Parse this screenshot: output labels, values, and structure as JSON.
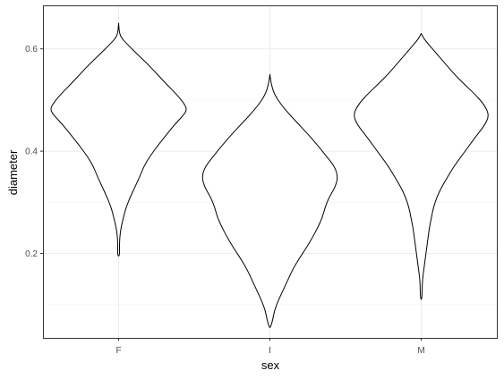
{
  "chart_data": {
    "type": "violin",
    "xlabel": "sex",
    "ylabel": "diameter",
    "categories": [
      "F",
      "I",
      "M"
    ],
    "ylim": [
      0.035,
      0.685
    ],
    "y_ticks": [
      0.2,
      0.4,
      0.6
    ],
    "y_tick_labels": [
      "0.2",
      "0.4",
      "0.6"
    ],
    "grid": true,
    "colors": {
      "outline": "#000000",
      "fill": "#ffffff",
      "grid": "#ebebeb",
      "border": "#333333"
    },
    "violins": [
      {
        "category": "F",
        "profile": [
          [
            0.195,
            0.0
          ],
          [
            0.197,
            0.013
          ],
          [
            0.21,
            0.013
          ],
          [
            0.23,
            0.015
          ],
          [
            0.25,
            0.035
          ],
          [
            0.27,
            0.07
          ],
          [
            0.29,
            0.11
          ],
          [
            0.31,
            0.17
          ],
          [
            0.33,
            0.24
          ],
          [
            0.35,
            0.31
          ],
          [
            0.37,
            0.37
          ],
          [
            0.39,
            0.46
          ],
          [
            0.41,
            0.57
          ],
          [
            0.43,
            0.69
          ],
          [
            0.45,
            0.81
          ],
          [
            0.47,
            0.95
          ],
          [
            0.48,
            1.0
          ],
          [
            0.49,
            0.98
          ],
          [
            0.51,
            0.86
          ],
          [
            0.53,
            0.71
          ],
          [
            0.55,
            0.57
          ],
          [
            0.57,
            0.43
          ],
          [
            0.59,
            0.27
          ],
          [
            0.61,
            0.12
          ],
          [
            0.62,
            0.05
          ],
          [
            0.63,
            0.012
          ],
          [
            0.65,
            0.0
          ]
        ]
      },
      {
        "category": "I",
        "profile": [
          [
            0.055,
            0.0
          ],
          [
            0.06,
            0.02
          ],
          [
            0.07,
            0.04
          ],
          [
            0.09,
            0.07
          ],
          [
            0.11,
            0.13
          ],
          [
            0.13,
            0.2
          ],
          [
            0.15,
            0.27
          ],
          [
            0.17,
            0.34
          ],
          [
            0.19,
            0.43
          ],
          [
            0.21,
            0.53
          ],
          [
            0.23,
            0.62
          ],
          [
            0.25,
            0.7
          ],
          [
            0.27,
            0.77
          ],
          [
            0.29,
            0.81
          ],
          [
            0.31,
            0.87
          ],
          [
            0.33,
            0.96
          ],
          [
            0.35,
            1.0
          ],
          [
            0.37,
            0.95
          ],
          [
            0.39,
            0.83
          ],
          [
            0.41,
            0.71
          ],
          [
            0.43,
            0.58
          ],
          [
            0.45,
            0.44
          ],
          [
            0.47,
            0.3
          ],
          [
            0.49,
            0.17
          ],
          [
            0.51,
            0.07
          ],
          [
            0.53,
            0.02
          ],
          [
            0.55,
            0.0
          ]
        ]
      },
      {
        "category": "M",
        "profile": [
          [
            0.11,
            0.0
          ],
          [
            0.115,
            0.012
          ],
          [
            0.13,
            0.014
          ],
          [
            0.15,
            0.02
          ],
          [
            0.17,
            0.04
          ],
          [
            0.19,
            0.06
          ],
          [
            0.21,
            0.08
          ],
          [
            0.23,
            0.1
          ],
          [
            0.25,
            0.12
          ],
          [
            0.27,
            0.15
          ],
          [
            0.29,
            0.18
          ],
          [
            0.31,
            0.23
          ],
          [
            0.33,
            0.3
          ],
          [
            0.35,
            0.39
          ],
          [
            0.37,
            0.48
          ],
          [
            0.39,
            0.59
          ],
          [
            0.41,
            0.7
          ],
          [
            0.43,
            0.81
          ],
          [
            0.45,
            0.93
          ],
          [
            0.47,
            1.0
          ],
          [
            0.49,
            0.93
          ],
          [
            0.51,
            0.8
          ],
          [
            0.53,
            0.64
          ],
          [
            0.55,
            0.49
          ],
          [
            0.57,
            0.36
          ],
          [
            0.59,
            0.23
          ],
          [
            0.61,
            0.1
          ],
          [
            0.62,
            0.04
          ],
          [
            0.63,
            0.0
          ]
        ]
      }
    ]
  }
}
